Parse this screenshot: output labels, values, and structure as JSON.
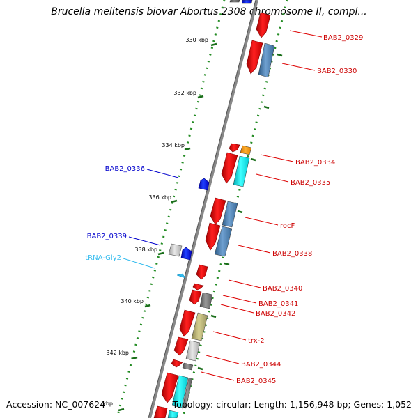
{
  "title": "Brucella melitensis biovar Abortus 2308 chromosome II, compl...",
  "footer": {
    "accession": "Accession: NC_007624",
    "topology": "Topology: circular; Length: 1,156,948 bp; Genes: 1,052"
  },
  "ticks": [
    "330 kbp",
    "332 kbp",
    "334 kbp",
    "336 kbp",
    "338 kbp",
    "340 kbp",
    "342 kbp",
    "kbp"
  ],
  "labels": {
    "BAB2_0329": "BAB2_0329",
    "BAB2_0330": "BAB2_0330",
    "BAB2_0334": "BAB2_0334",
    "BAB2_0335": "BAB2_0335",
    "rocF": "rocF",
    "BAB2_0338": "BAB2_0338",
    "BAB2_0340": "BAB2_0340",
    "BAB2_0341": "BAB2_0341",
    "BAB2_0342": "BAB2_0342",
    "trx_2": "trx-2",
    "BAB2_0344": "BAB2_0344",
    "BAB2_0345": "BAB2_0345",
    "BAB2_0336": "BAB2_0336",
    "BAB2_0339": "BAB2_0339",
    "tRNA_Gly2": "tRNA-Gly2"
  },
  "colors": {
    "forward_cds": "#ff0000",
    "reverse_cds": "#0000ff",
    "trna": "#33ccff",
    "cog_blue": "#4682b4",
    "cog_cyan": "#00ffff",
    "cog_gray": "#888888",
    "cog_lightgray": "#cccccc",
    "cog_khaki": "#bdb76b",
    "cog_orange": "#ff9900",
    "tick": "#006400",
    "backbone": "#888888"
  }
}
